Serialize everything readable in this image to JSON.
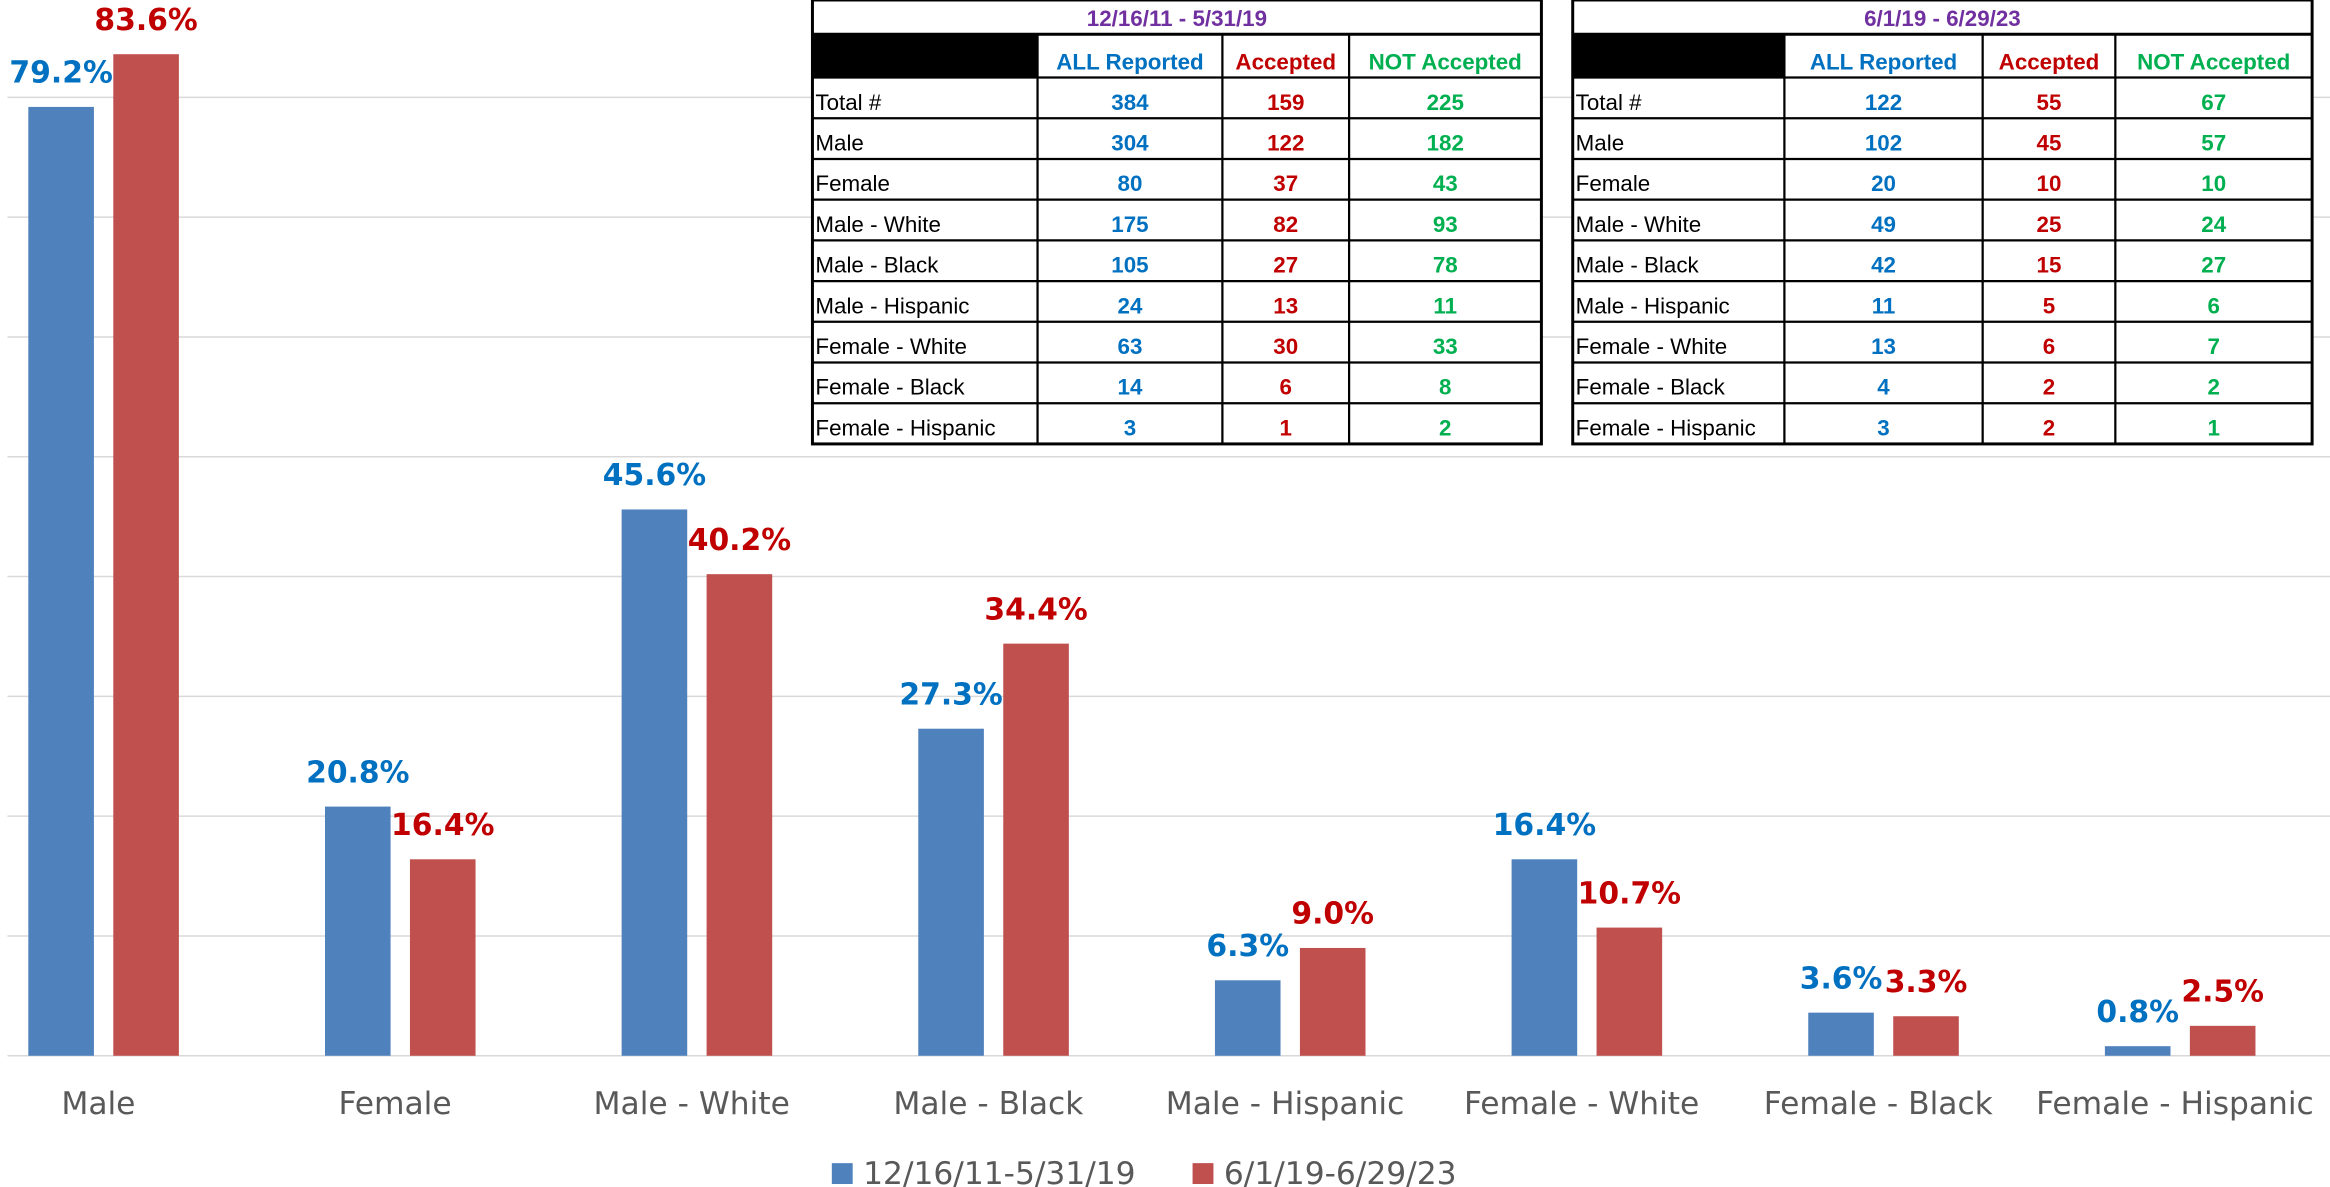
{
  "chart_data": {
    "type": "bar",
    "categories": [
      "Male",
      "Female",
      "Male - White",
      "Male - Black",
      "Male - Hispanic",
      "Female - White",
      "Female - Black",
      "Female - Hispanic"
    ],
    "series": [
      {
        "name": "12/16/11-5/31/19",
        "color": "#4f81bd",
        "label_color": "#0070c0",
        "values": [
          79.2,
          20.8,
          45.6,
          27.3,
          6.3,
          16.4,
          3.6,
          0.8
        ],
        "value_labels": [
          "79.2%",
          "20.8%",
          "45.6%",
          "27.3%",
          "6.3%",
          "16.4%",
          "3.6%",
          "0.8%"
        ]
      },
      {
        "name": "6/1/19-6/29/23",
        "color": "#c0504d",
        "label_color": "#c00000",
        "values": [
          83.6,
          16.4,
          40.2,
          34.4,
          9.0,
          10.7,
          3.3,
          2.5
        ],
        "value_labels": [
          "83.6%",
          "16.4%",
          "40.2%",
          "34.4%",
          "9.0%",
          "10.7%",
          "3.3%",
          "2.5%"
        ]
      }
    ],
    "ylim": [
      0,
      88
    ],
    "yticks": [
      0,
      10,
      20,
      30,
      40,
      50,
      60,
      70,
      80
    ],
    "grid": true,
    "legend": "bottom"
  },
  "tables": [
    {
      "title": "12/16/11 - 5/31/19",
      "columns": [
        "ALL Reported",
        "Accepted",
        "NOT Accepted"
      ],
      "rows": [
        [
          "Total #",
          384,
          159,
          225
        ],
        [
          "Male",
          304,
          122,
          182
        ],
        [
          "Female",
          80,
          37,
          43
        ],
        [
          "Male - White",
          175,
          82,
          93
        ],
        [
          "Male - Black",
          105,
          27,
          78
        ],
        [
          "Male - Hispanic",
          24,
          13,
          11
        ],
        [
          "Female - White",
          63,
          30,
          33
        ],
        [
          "Female - Black",
          14,
          6,
          8
        ],
        [
          "Female - Hispanic",
          3,
          1,
          2
        ]
      ]
    },
    {
      "title": "6/1/19 - 6/29/23",
      "columns": [
        "ALL Reported",
        "Accepted",
        "NOT Accepted"
      ],
      "rows": [
        [
          "Total #",
          122,
          55,
          67
        ],
        [
          "Male",
          102,
          45,
          57
        ],
        [
          "Female",
          20,
          10,
          10
        ],
        [
          "Male - White",
          49,
          25,
          24
        ],
        [
          "Male - Black",
          42,
          15,
          27
        ],
        [
          "Male - Hispanic",
          11,
          5,
          6
        ],
        [
          "Female - White",
          13,
          6,
          7
        ],
        [
          "Female - Black",
          4,
          2,
          2
        ],
        [
          "Female - Hispanic",
          3,
          2,
          1
        ]
      ]
    }
  ]
}
